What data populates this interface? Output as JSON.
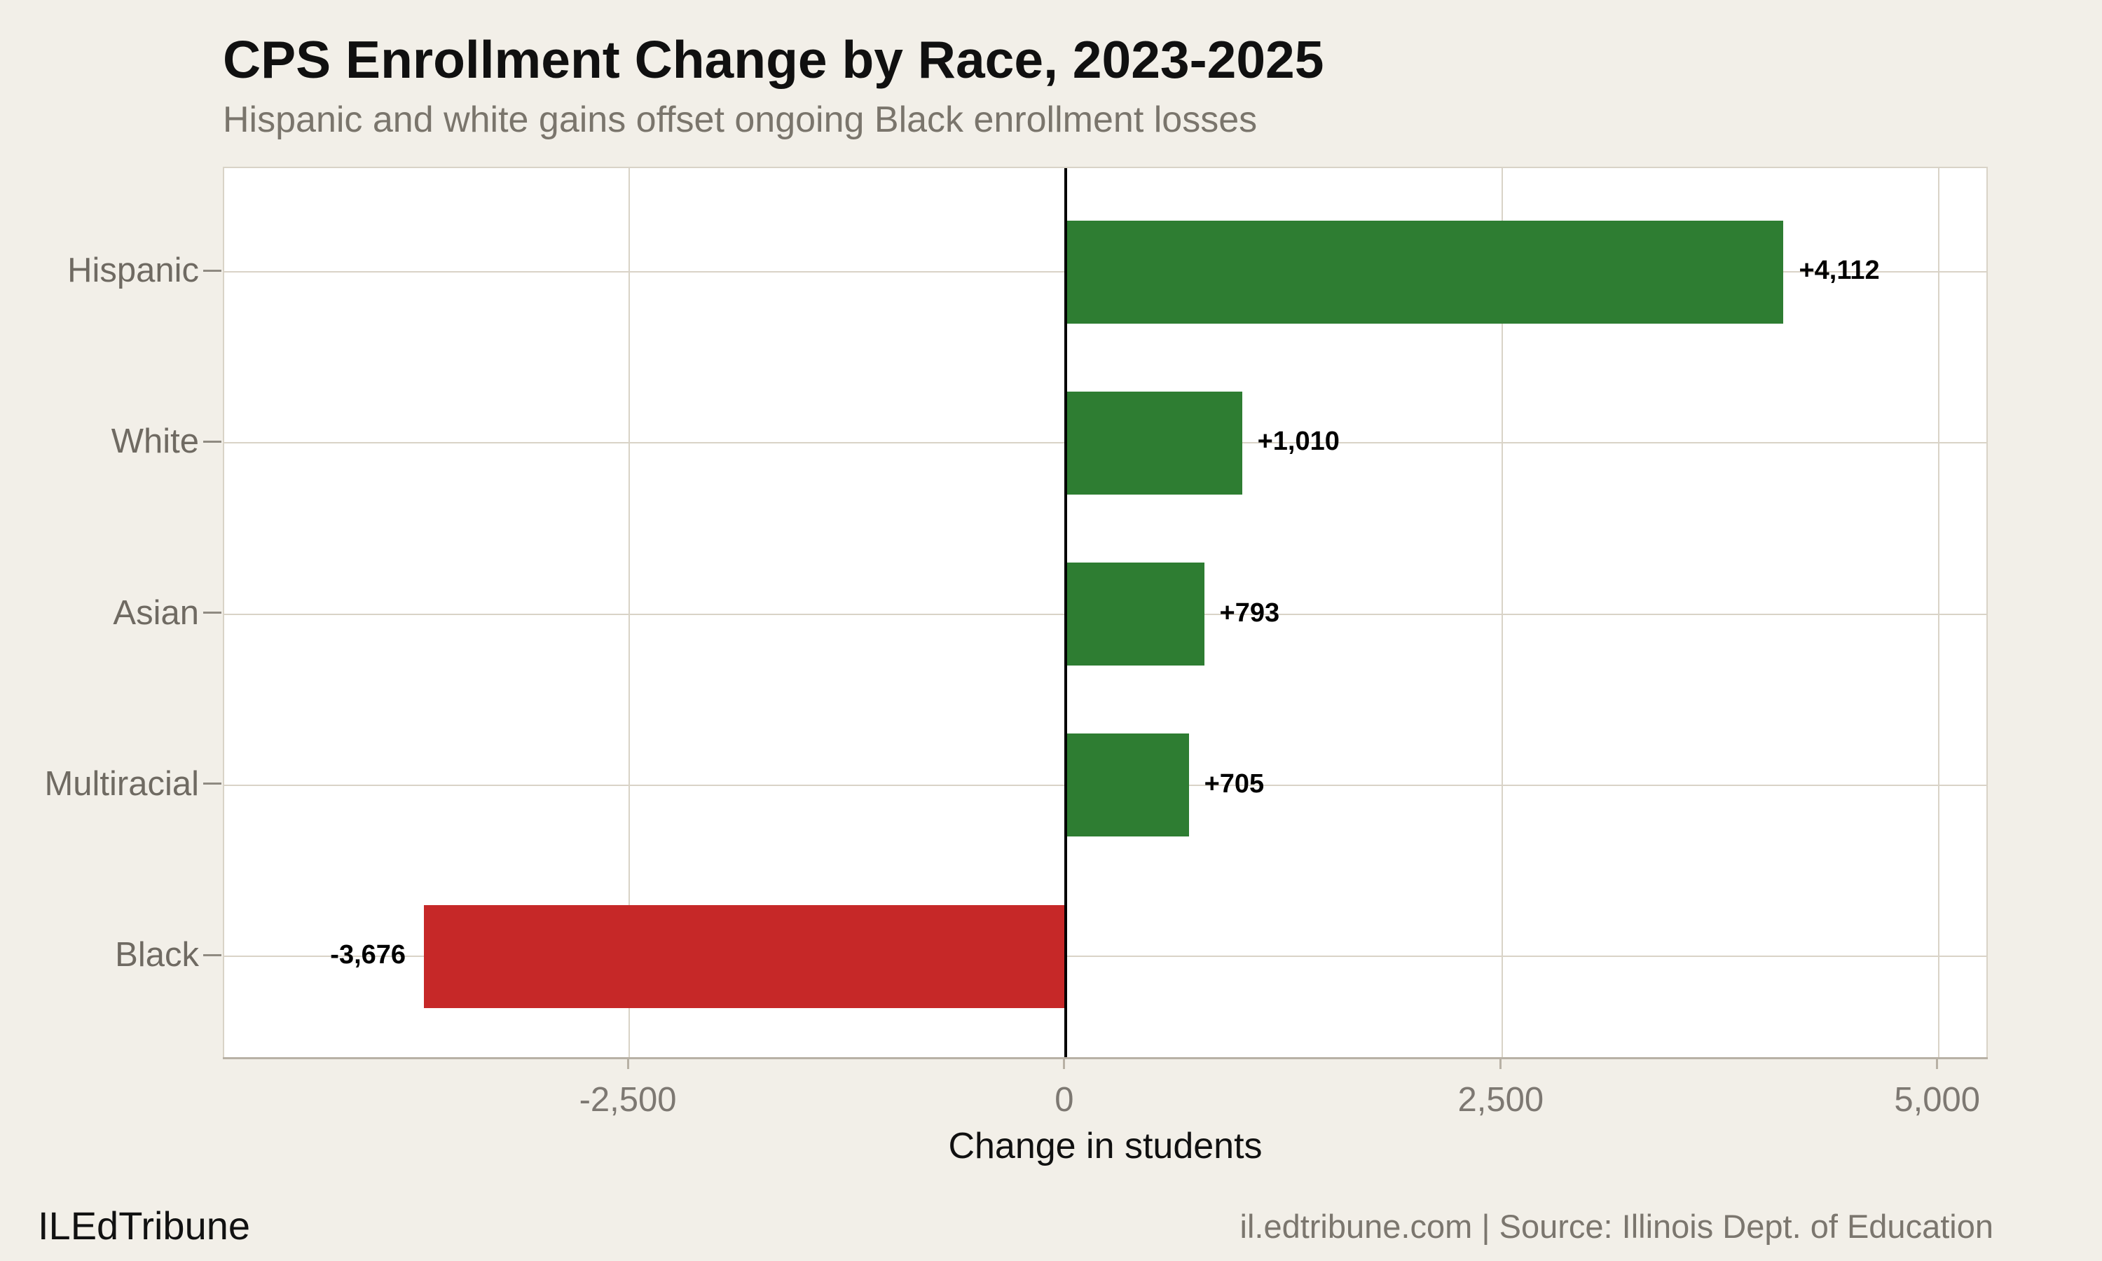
{
  "page": {
    "background_color": "#f2efe8",
    "plot_background_color": "#ffffff",
    "gridline_color": "#d9d3c7",
    "axis_line_color": "#b8b1a5",
    "zero_line_color": "#000000"
  },
  "header": {
    "title": "CPS Enrollment Change by Race, 2023-2025",
    "subtitle": "Hispanic and white gains offset ongoing Black enrollment losses"
  },
  "footer": {
    "brand": "ILEdTribune",
    "source": "il.edtribune.com | Source: Illinois Dept. of Education"
  },
  "chart_data": {
    "type": "bar",
    "orientation": "horizontal",
    "title": "CPS Enrollment Change by Race, 2023-2025",
    "subtitle": "Hispanic and white gains offset ongoing Black enrollment losses",
    "categories": [
      "Hispanic",
      "White",
      "Asian",
      "Multiracial",
      "Black"
    ],
    "values": [
      4112,
      1010,
      793,
      705,
      -3676
    ],
    "value_labels": [
      "+4,112",
      "+1,010",
      "+793",
      "+705",
      "-3,676"
    ],
    "xlabel": "Change in students",
    "xlim": [
      -4820,
      5290
    ],
    "xticks": [
      -2500,
      0,
      2500,
      5000
    ],
    "xtick_labels": [
      "-2,500",
      "0",
      "2,500",
      "5,000"
    ],
    "grid": true,
    "legend": "none",
    "positive_color": "#2e7d32",
    "negative_color": "#c62828"
  }
}
